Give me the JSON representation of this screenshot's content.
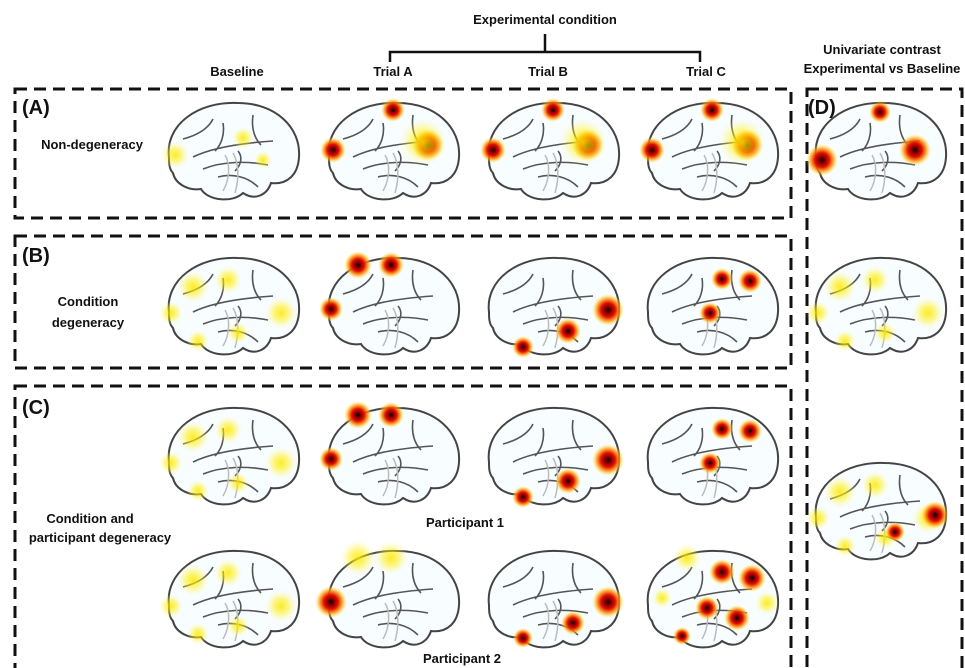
{
  "header": {
    "title": "Experimental condition",
    "columns": [
      "Baseline",
      "Trial A",
      "Trial B",
      "Trial C"
    ],
    "contrast": [
      "Univariate contrast",
      "Experimental vs Baseline"
    ]
  },
  "panels": [
    {
      "label": "(A)",
      "name": [
        "Non-degeneracy"
      ]
    },
    {
      "label": "(B)",
      "name": [
        "Condition",
        "degeneracy"
      ]
    },
    {
      "label": "(C)",
      "name": [
        "Condition and",
        "participant degeneracy"
      ],
      "participants": [
        "Participant 1",
        "Participant 2"
      ]
    },
    {
      "label": "(D)"
    }
  ]
}
